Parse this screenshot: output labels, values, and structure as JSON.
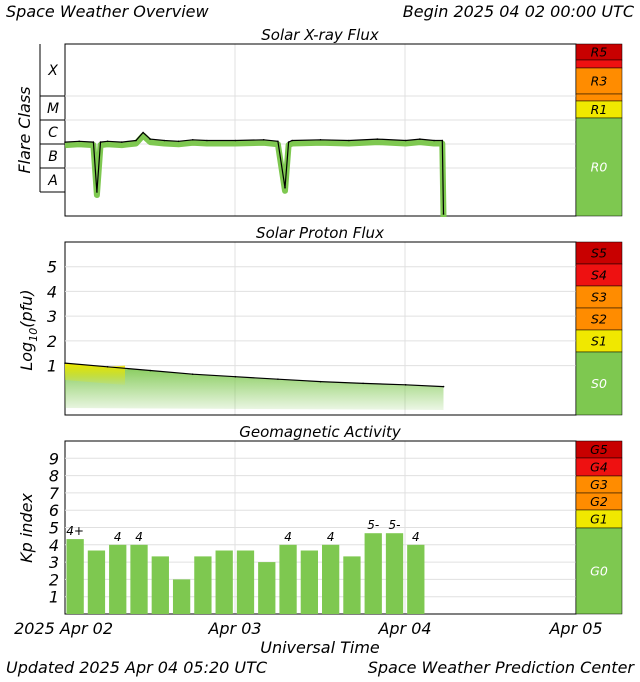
{
  "header": {
    "title": "Space Weather Overview",
    "begin": "Begin 2025 04 02 00:00 UTC"
  },
  "footer": {
    "updated": "Updated 2025 Apr 04 05:20 UTC",
    "center": "Space Weather Prediction Center"
  },
  "colors": {
    "data_green": "#7ec850",
    "line_dark": "#000000",
    "scale_green": "#7ec850",
    "scale_yellow": "#f0e800",
    "scale_orange": "#ff8c00",
    "scale_red": "#ee1111",
    "scale_darkred": "#c80000",
    "grid": "#e0e0e0"
  },
  "time_axis": {
    "label": "Universal Time",
    "ticks": [
      "2025 Apr 02",
      "Apr 03",
      "Apr 04",
      "Apr 05"
    ],
    "start": "2025-04-02T00:00",
    "end": "2025-04-05T00:00"
  },
  "chart_data": [
    {
      "type": "line",
      "title": "Solar X-ray Flux",
      "ylabel": "Flare Class",
      "y_scale": "log",
      "class_labels": [
        "A",
        "B",
        "C",
        "M",
        "X"
      ],
      "x": [
        "2025-04-02T00:00",
        "2025-04-02T02:00",
        "2025-04-02T04:00",
        "2025-04-02T04:30",
        "2025-04-02T05:00",
        "2025-04-02T06:00",
        "2025-04-02T08:00",
        "2025-04-02T10:00",
        "2025-04-02T11:00",
        "2025-04-02T12:00",
        "2025-04-02T14:00",
        "2025-04-02T16:00",
        "2025-04-02T18:00",
        "2025-04-02T20:00",
        "2025-04-03T00:00",
        "2025-04-03T04:00",
        "2025-04-03T06:00",
        "2025-04-03T07:00",
        "2025-04-03T07:30",
        "2025-04-03T08:00",
        "2025-04-03T12:00",
        "2025-04-03T16:00",
        "2025-04-03T20:00",
        "2025-04-04T00:00",
        "2025-04-04T02:00",
        "2025-04-04T04:00",
        "2025-04-04T05:10",
        "2025-04-04T05:20"
      ],
      "y": [
        "C1.2",
        "C1.3",
        "C1.2",
        "A1",
        "C1.2",
        "C1.3",
        "C1.2",
        "C1.4",
        "C3",
        "C1.6",
        "C1.4",
        "C1.3",
        "C1.5",
        "C1.4",
        "C1.4",
        "C1.5",
        "C1.3",
        "A1.5",
        "C1.2",
        "C1.4",
        "C1.5",
        "C1.4",
        "C1.6",
        "C1.4",
        "C1.6",
        "C1.4",
        "C1.4",
        "A0.1"
      ],
      "scale_labels": [
        "R5",
        "R3",
        "R1",
        "R0"
      ]
    },
    {
      "type": "line",
      "title": "Solar Proton Flux",
      "ylabel": "Log10(pfu)",
      "yticks": [
        "1",
        "2",
        "3",
        "4",
        "5"
      ],
      "ylim": [
        -1,
        6
      ],
      "x": [
        "2025-04-02T00:00",
        "2025-04-02T06:00",
        "2025-04-02T12:00",
        "2025-04-02T18:00",
        "2025-04-03T00:00",
        "2025-04-03T06:00",
        "2025-04-03T12:00",
        "2025-04-03T18:00",
        "2025-04-04T00:00",
        "2025-04-04T05:20"
      ],
      "y": [
        1.1,
        0.95,
        0.8,
        0.65,
        0.55,
        0.45,
        0.35,
        0.28,
        0.22,
        0.15
      ],
      "scale_labels": [
        "S5",
        "S4",
        "S3",
        "S2",
        "S1",
        "S0"
      ]
    },
    {
      "type": "bar",
      "title": "Geomagnetic Activity",
      "ylabel": "Kp index",
      "yticks": [
        "1",
        "2",
        "3",
        "4",
        "5",
        "6",
        "7",
        "8",
        "9"
      ],
      "ylim": [
        0,
        10
      ],
      "kp": [
        4.33,
        3.67,
        4,
        4,
        3.33,
        2,
        3.33,
        3.67,
        3.67,
        3,
        4,
        3.67,
        4,
        3.33,
        4.67,
        4.67,
        4
      ],
      "bar_labels": [
        "4+",
        "",
        "4",
        "4",
        "",
        "",
        "",
        "",
        "",
        "",
        "4",
        "",
        "4",
        "",
        "5-",
        "5-",
        "4"
      ],
      "scale_labels": [
        "G5",
        "G4",
        "G3",
        "G2",
        "G1",
        "G0"
      ]
    }
  ]
}
